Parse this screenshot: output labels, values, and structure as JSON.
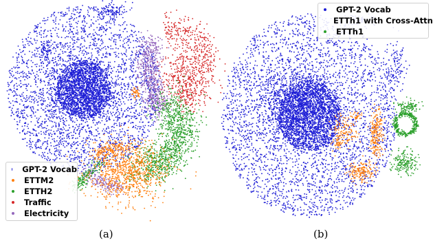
{
  "chart_data": [
    {
      "type": "scatter",
      "caption": "(a)",
      "series": [
        {
          "name": "GPT-2 Vocab",
          "color": "#1f1fd6"
        },
        {
          "name": "ETTM2",
          "color": "#ff7f0e"
        },
        {
          "name": "ETTH2",
          "color": "#2ca02c"
        },
        {
          "name": "Traffic",
          "color": "#d62728"
        },
        {
          "name": "Electricity",
          "color": "#9467bd"
        }
      ],
      "legend_position": "bottom-left",
      "axes_visible": false,
      "grid": false
    },
    {
      "type": "scatter",
      "caption": "(b)",
      "series": [
        {
          "name": "GPT-2 Vocab",
          "color": "#1f1fd6"
        },
        {
          "name": "ETTh1 with Cross-Attn",
          "color": "#ff7f0e"
        },
        {
          "name": "ETTh1",
          "color": "#2ca02c"
        }
      ],
      "legend_position": "top-right",
      "axes_visible": false,
      "grid": false
    }
  ]
}
